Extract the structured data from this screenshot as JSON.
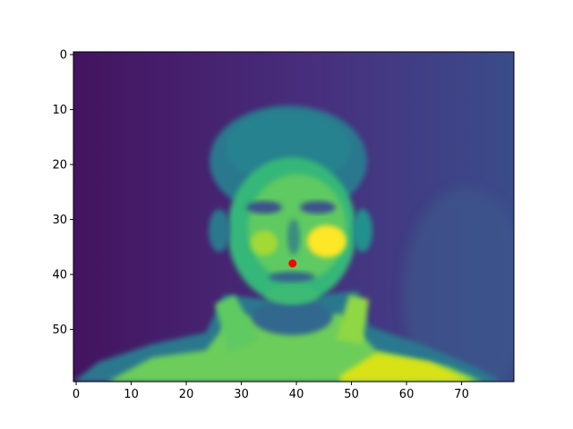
{
  "chart_data": {
    "type": "heatmap",
    "title": "",
    "xlabel": "",
    "ylabel": "",
    "colormap": "viridis",
    "image_shape": [
      60,
      80
    ],
    "content": "grayscale photograph of a face rendered with viridis colormap",
    "xlim": [
      -0.5,
      79.5
    ],
    "ylim": [
      59.5,
      -0.5
    ],
    "x_ticks": [
      0,
      10,
      20,
      30,
      40,
      50,
      60,
      70
    ],
    "x_tick_labels": [
      "0",
      "10",
      "20",
      "30",
      "40",
      "50",
      "60",
      "70"
    ],
    "y_ticks": [
      0,
      10,
      20,
      30,
      40,
      50
    ],
    "y_tick_labels": [
      "0",
      "10",
      "20",
      "30",
      "40",
      "50"
    ],
    "marker": {
      "x": 39.3,
      "y": 38.0,
      "color": "#ff0000",
      "shape": "circle"
    },
    "grid": false,
    "legend": "none"
  }
}
